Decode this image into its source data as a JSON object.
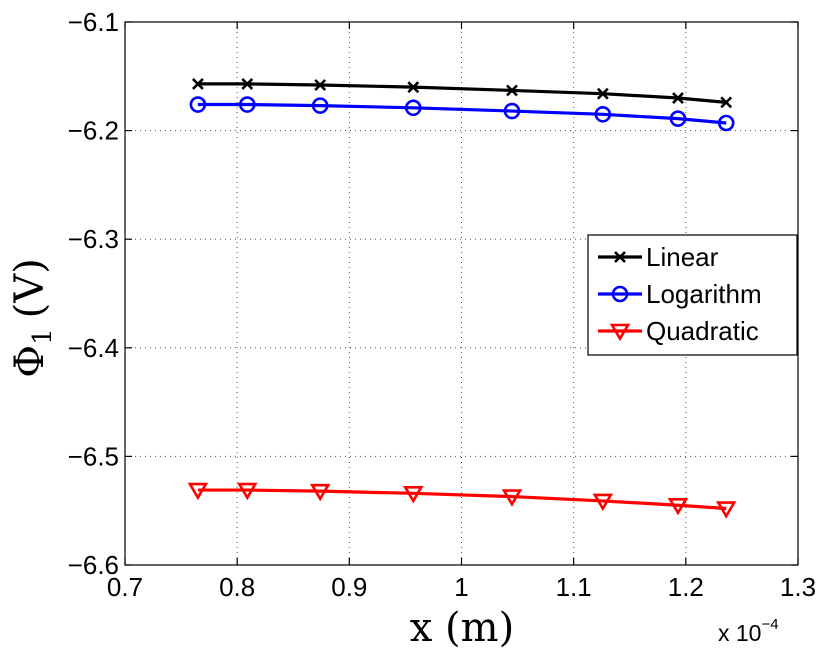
{
  "chart_data": {
    "type": "line",
    "title": "",
    "xlabel": "x (m)",
    "ylabel_main": "Φ",
    "ylabel_sub": "1",
    "ylabel_units": "(V)",
    "x_exponent_prefix": "x 10",
    "x_exponent_power": "−4",
    "xlim": [
      0.7,
      1.3
    ],
    "ylim": [
      -6.6,
      -6.1
    ],
    "xticks": [
      0.7,
      0.8,
      0.9,
      1.0,
      1.1,
      1.2,
      1.3
    ],
    "xtick_labels": [
      "0.7",
      "0.8",
      "0.9",
      "1",
      "1.1",
      "1.2",
      "1.3"
    ],
    "yticks": [
      -6.6,
      -6.5,
      -6.4,
      -6.3,
      -6.2,
      -6.1
    ],
    "ytick_labels": [
      "−6.6",
      "−6.5",
      "−6.4",
      "−6.3",
      "−6.2",
      "−6.1"
    ],
    "grid": true,
    "legend_position": "right",
    "x": [
      0.765,
      0.809,
      0.874,
      0.957,
      1.045,
      1.126,
      1.193,
      1.236
    ],
    "series": [
      {
        "name": "Linear",
        "color": "#000000",
        "marker": "x",
        "values": [
          -6.157,
          -6.157,
          -6.158,
          -6.16,
          -6.163,
          -6.166,
          -6.17,
          -6.174
        ]
      },
      {
        "name": "Logarithm",
        "color": "#0000ff",
        "marker": "o",
        "values": [
          -6.176,
          -6.176,
          -6.177,
          -6.179,
          -6.182,
          -6.185,
          -6.189,
          -6.193
        ]
      },
      {
        "name": "Quadratic",
        "color": "#ff0000",
        "marker": "v",
        "values": [
          -6.531,
          -6.531,
          -6.532,
          -6.534,
          -6.537,
          -6.541,
          -6.545,
          -6.548
        ]
      }
    ]
  }
}
